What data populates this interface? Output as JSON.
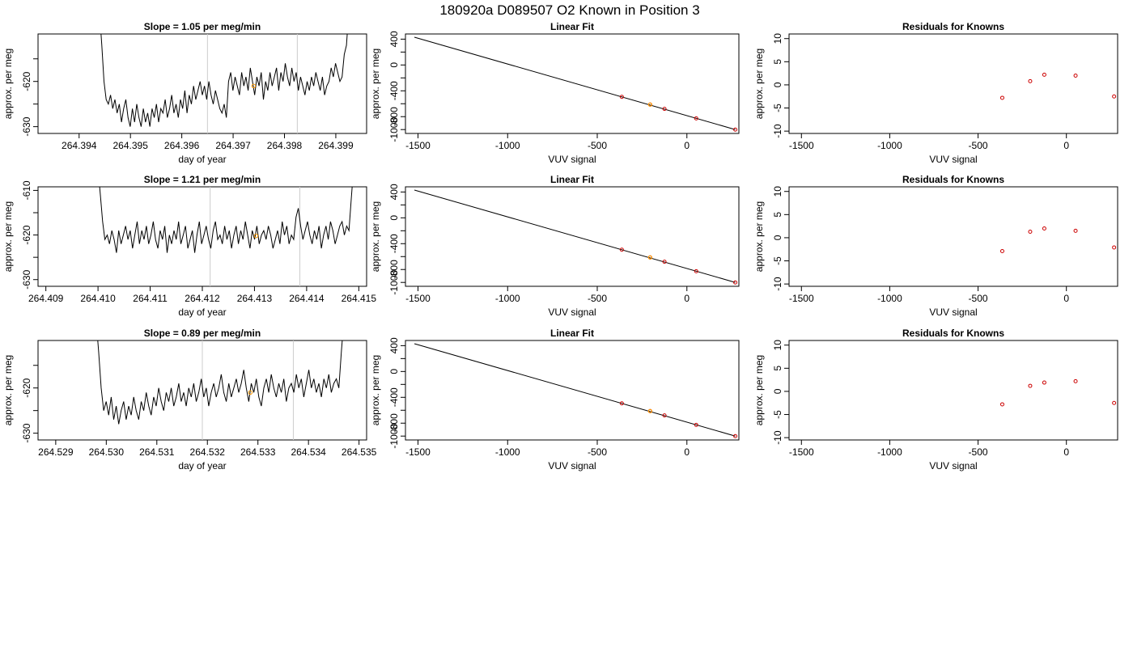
{
  "figure": {
    "title": "180920a     D089507   O2 Known in Position  3"
  },
  "chart_data": [
    {
      "type": "line",
      "title": "Slope =  1.05  per meg/min",
      "xlabel": "day of year",
      "ylabel": "approx. per meg",
      "xlim": [
        264.3932,
        264.3996
      ],
      "ylim": [
        -631.5,
        -609.5
      ],
      "xticks": [
        "264.394",
        "264.395",
        "264.396",
        "264.397",
        "264.398",
        "264.399"
      ],
      "xtick_values": [
        264.394,
        264.395,
        264.396,
        264.397,
        264.398,
        264.399
      ],
      "yticks": [
        "-630",
        "-620"
      ],
      "ytick_values": [
        -630,
        -620
      ],
      "ytick_minor": [
        -625,
        -615
      ],
      "vlines": [
        264.3965,
        264.39825
      ],
      "vline_color": "#cccccc",
      "marker": {
        "x": 264.3974,
        "y": -621.0,
        "color": "#ff9900"
      },
      "series": [
        {
          "color": "#000000",
          "start": 264.3944,
          "end": 264.39925,
          "values": [
            -605,
            -612,
            -620,
            -624,
            -625,
            -623,
            -626,
            -624,
            -627,
            -625,
            -629,
            -626,
            -624,
            -628,
            -630,
            -626,
            -629,
            -625,
            -628,
            -630,
            -626,
            -629,
            -627,
            -630,
            -626,
            -628,
            -625,
            -629,
            -626,
            -627,
            -624,
            -628,
            -626,
            -623,
            -627,
            -625,
            -628,
            -624,
            -626,
            -622,
            -627,
            -623,
            -625,
            -621,
            -624,
            -622,
            -620,
            -623,
            -621,
            -624,
            -620,
            -623,
            -625,
            -622,
            -624,
            -626,
            -627,
            -625,
            -628,
            -620,
            -618,
            -622,
            -619,
            -621,
            -623,
            -618,
            -621,
            -619,
            -622,
            -617,
            -620,
            -623,
            -619,
            -621,
            -618,
            -624,
            -620,
            -622,
            -618,
            -621,
            -619,
            -617,
            -622,
            -618,
            -620,
            -616,
            -619,
            -621,
            -617,
            -620,
            -618,
            -622,
            -619,
            -621,
            -623,
            -620,
            -622,
            -619,
            -621,
            -618,
            -620,
            -622,
            -619,
            -623,
            -621,
            -620,
            -617,
            -619,
            -616,
            -618,
            -620,
            -619,
            -614,
            -612,
            -605
          ]
        }
      ]
    },
    {
      "type": "scatter",
      "title": "Linear Fit",
      "xlabel": "VUV signal",
      "ylabel": "approx. per meg",
      "xlim": [
        -1570,
        290
      ],
      "ylim": [
        -1060,
        480
      ],
      "xticks": [
        "-1500",
        "-1000",
        "-500",
        "0"
      ],
      "xtick_values": [
        -1500,
        -1000,
        -500,
        0
      ],
      "yticks": [
        "-1000",
        "-800",
        "-400",
        "0",
        "400"
      ],
      "ytick_values": [
        -1000,
        -800,
        -400,
        0,
        400
      ],
      "ytick_minor": [
        -600,
        -200,
        200
      ],
      "fit_line": {
        "x": [
          -1520,
          270
        ],
        "y": [
          430,
          -1000
        ]
      },
      "points": {
        "x": [
          -363,
          -205,
          -125,
          52,
          270
        ],
        "y": [
          -493,
          -613,
          -680,
          -827,
          -1000
        ],
        "color": "#cc0000"
      },
      "marker": {
        "x": -205,
        "y": -613,
        "color": "#ff9900"
      }
    },
    {
      "type": "scatter",
      "title": "Residuals for Knowns",
      "xlabel": "VUV signal",
      "ylabel": "approx. per meg",
      "xlim": [
        -1570,
        290
      ],
      "ylim": [
        -10.5,
        11
      ],
      "xticks": [
        "-1500",
        "-1000",
        "-500",
        "0"
      ],
      "xtick_values": [
        -1500,
        -1000,
        -500,
        0
      ],
      "yticks": [
        "-10",
        "-5",
        "0",
        "5",
        "10"
      ],
      "ytick_values": [
        -10,
        -5,
        0,
        5,
        10
      ],
      "points": {
        "x": [
          -363,
          -205,
          -125,
          52,
          270
        ],
        "y": [
          -2.8,
          0.8,
          2.2,
          2.0,
          -2.5
        ],
        "color": "#cc0000"
      }
    },
    {
      "type": "line",
      "title": "Slope =  1.21  per meg/min",
      "xlabel": "day of year",
      "ylabel": "approx. per meg",
      "xlim": [
        264.40885,
        264.41515
      ],
      "ylim": [
        -631.5,
        -609.2
      ],
      "xticks": [
        "264.409",
        "264.410",
        "264.411",
        "264.412",
        "264.413",
        "264.414",
        "264.415"
      ],
      "xtick_values": [
        264.409,
        264.41,
        264.411,
        264.412,
        264.413,
        264.414,
        264.415
      ],
      "yticks": [
        "-630",
        "-620",
        "-610"
      ],
      "ytick_values": [
        -630,
        -620,
        -610
      ],
      "ytick_minor": [
        -625,
        -615
      ],
      "vlines": [
        264.41215,
        264.41387
      ],
      "vline_color": "#cccccc",
      "marker": {
        "x": 264.41303,
        "y": -620.2,
        "color": "#ff9900"
      },
      "series": [
        {
          "color": "#000000",
          "start": 264.41,
          "end": 264.4149,
          "values": [
            -605,
            -611,
            -617,
            -621,
            -620,
            -622,
            -619,
            -621,
            -624,
            -619,
            -622,
            -620,
            -618,
            -621,
            -619,
            -623,
            -620,
            -617,
            -622,
            -619,
            -621,
            -618,
            -622,
            -620,
            -617,
            -621,
            -623,
            -619,
            -621,
            -618,
            -624,
            -620,
            -622,
            -619,
            -621,
            -617,
            -622,
            -620,
            -618,
            -623,
            -621,
            -619,
            -624,
            -620,
            -617,
            -622,
            -620,
            -618,
            -621,
            -623,
            -619,
            -617,
            -621,
            -620,
            -622,
            -618,
            -621,
            -619,
            -623,
            -620,
            -618,
            -622,
            -619,
            -621,
            -617,
            -620,
            -623,
            -619,
            -621,
            -618,
            -622,
            -620,
            -619,
            -621,
            -618,
            -620,
            -623,
            -621,
            -619,
            -622,
            -617,
            -620,
            -618,
            -622,
            -620,
            -621,
            -616,
            -614,
            -618,
            -621,
            -619,
            -617,
            -620,
            -622,
            -619,
            -621,
            -618,
            -623,
            -620,
            -618,
            -621,
            -617,
            -619,
            -622,
            -620,
            -618,
            -617,
            -620,
            -618,
            -619,
            -612,
            -605
          ]
        }
      ]
    },
    {
      "type": "scatter",
      "title": "Linear Fit",
      "xlabel": "VUV signal",
      "ylabel": "approx. per meg",
      "xlim": [
        -1570,
        290
      ],
      "ylim": [
        -1060,
        480
      ],
      "xticks": [
        "-1500",
        "-1000",
        "-500",
        "0"
      ],
      "xtick_values": [
        -1500,
        -1000,
        -500,
        0
      ],
      "yticks": [
        "-1000",
        "-800",
        "-400",
        "0",
        "400"
      ],
      "ytick_values": [
        -1000,
        -800,
        -400,
        0,
        400
      ],
      "ytick_minor": [
        -600,
        -200,
        200
      ],
      "fit_line": {
        "x": [
          -1520,
          270
        ],
        "y": [
          430,
          -1000
        ]
      },
      "points": {
        "x": [
          -363,
          -205,
          -125,
          52,
          270
        ],
        "y": [
          -493,
          -613,
          -680,
          -827,
          -1000
        ],
        "color": "#cc0000"
      },
      "marker": {
        "x": -205,
        "y": -613,
        "color": "#ff9900"
      }
    },
    {
      "type": "scatter",
      "title": "Residuals for Knowns",
      "xlabel": "VUV signal",
      "ylabel": "approx. per meg",
      "xlim": [
        -1570,
        290
      ],
      "ylim": [
        -10.5,
        11
      ],
      "xticks": [
        "-1500",
        "-1000",
        "-500",
        "0"
      ],
      "xtick_values": [
        -1500,
        -1000,
        -500,
        0
      ],
      "yticks": [
        "-10",
        "-5",
        "0",
        "5",
        "10"
      ],
      "ytick_values": [
        -10,
        -5,
        0,
        5,
        10
      ],
      "points": {
        "x": [
          -363,
          -205,
          -125,
          52,
          270
        ],
        "y": [
          -2.9,
          1.3,
          2.0,
          1.5,
          -2.1
        ],
        "color": "#cc0000"
      }
    },
    {
      "type": "line",
      "title": "Slope =  0.89  per meg/min",
      "xlabel": "day of year",
      "ylabel": "approx. per meg",
      "xlim": [
        264.52865,
        264.53515
      ],
      "ylim": [
        -631.5,
        -609.5
      ],
      "xticks": [
        "264.529",
        "264.530",
        "264.531",
        "264.532",
        "264.533",
        "264.534",
        "264.535"
      ],
      "xtick_values": [
        264.529,
        264.53,
        264.531,
        264.532,
        264.533,
        264.534,
        264.535
      ],
      "yticks": [
        "-630",
        "-620"
      ],
      "ytick_values": [
        -630,
        -620
      ],
      "ytick_minor": [
        -625,
        -615
      ],
      "vlines": [
        264.5319,
        264.5337
      ],
      "vline_color": "#cccccc",
      "marker": {
        "x": 264.53285,
        "y": -621.0,
        "color": "#ff9900"
      },
      "series": [
        {
          "color": "#000000",
          "start": 264.5298,
          "end": 264.5347,
          "values": [
            -605,
            -612,
            -620,
            -625,
            -623,
            -626,
            -622,
            -627,
            -624,
            -628,
            -625,
            -623,
            -627,
            -624,
            -626,
            -622,
            -625,
            -627,
            -623,
            -625,
            -621,
            -624,
            -626,
            -622,
            -624,
            -620,
            -623,
            -625,
            -621,
            -623,
            -620,
            -624,
            -622,
            -619,
            -623,
            -621,
            -624,
            -620,
            -622,
            -619,
            -623,
            -621,
            -618,
            -622,
            -620,
            -624,
            -621,
            -619,
            -622,
            -620,
            -617,
            -621,
            -623,
            -619,
            -622,
            -620,
            -618,
            -621,
            -619,
            -616,
            -620,
            -623,
            -619,
            -621,
            -618,
            -622,
            -624,
            -620,
            -618,
            -621,
            -617,
            -620,
            -622,
            -619,
            -621,
            -618,
            -623,
            -620,
            -619,
            -621,
            -617,
            -620,
            -618,
            -622,
            -619,
            -616,
            -620,
            -618,
            -621,
            -619,
            -622,
            -618,
            -620,
            -617,
            -621,
            -619,
            -618,
            -620,
            -612,
            -605
          ]
        }
      ]
    },
    {
      "type": "scatter",
      "title": "Linear Fit",
      "xlabel": "VUV signal",
      "ylabel": "approx. per meg",
      "xlim": [
        -1570,
        290
      ],
      "ylim": [
        -1060,
        480
      ],
      "xticks": [
        "-1500",
        "-1000",
        "-500",
        "0"
      ],
      "xtick_values": [
        -1500,
        -1000,
        -500,
        0
      ],
      "yticks": [
        "-1000",
        "-800",
        "-400",
        "0",
        "400"
      ],
      "ytick_values": [
        -1000,
        -800,
        -400,
        0,
        400
      ],
      "ytick_minor": [
        -600,
        -200,
        200
      ],
      "fit_line": {
        "x": [
          -1520,
          270
        ],
        "y": [
          430,
          -1000
        ]
      },
      "points": {
        "x": [
          -363,
          -205,
          -125,
          52,
          270
        ],
        "y": [
          -493,
          -613,
          -680,
          -827,
          -1000
        ],
        "color": "#cc0000"
      },
      "marker": {
        "x": -205,
        "y": -613,
        "color": "#ff9900"
      }
    },
    {
      "type": "scatter",
      "title": "Residuals for Knowns",
      "xlabel": "VUV signal",
      "ylabel": "approx. per meg",
      "xlim": [
        -1570,
        290
      ],
      "ylim": [
        -10.5,
        11
      ],
      "xticks": [
        "-1500",
        "-1000",
        "-500",
        "0"
      ],
      "xtick_values": [
        -1500,
        -1000,
        -500,
        0
      ],
      "yticks": [
        "-10",
        "-5",
        "0",
        "5",
        "10"
      ],
      "points": {
        "x": [
          -363,
          -205,
          -125,
          52,
          270
        ],
        "y": [
          -2.8,
          1.2,
          1.9,
          2.2,
          -2.5
        ],
        "color": "#cc0000"
      }
    }
  ]
}
